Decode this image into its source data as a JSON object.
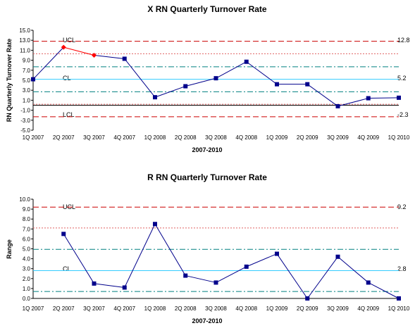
{
  "chart_data": [
    {
      "type": "line",
      "title": "X RN Quarterly Turnover Rate",
      "xlabel": "2007-2010",
      "ylabel": "RN Quarterly Turnover Rate",
      "ylim": [
        -5.0,
        15.0
      ],
      "yticks": [
        "15.0",
        "13.0",
        "11.0",
        "9.0",
        "7.0",
        "5.0",
        "3.0",
        "1.0",
        "-1.0",
        "-3.0",
        "-5.0"
      ],
      "categories": [
        "1Q 2007",
        "2Q 2007",
        "3Q 2007",
        "4Q 2007",
        "1Q 2008",
        "2Q 2008",
        "3Q 2008",
        "4Q 2008",
        "1Q 2009",
        "2Q 2009",
        "3Q 2009",
        "4Q 2009",
        "1Q 2010"
      ],
      "series": [
        {
          "values": [
            5.2,
            11.6,
            10.0,
            9.3,
            1.6,
            3.8,
            5.4,
            8.7,
            4.2,
            4.2,
            -0.2,
            1.4,
            1.5
          ],
          "highlight": [
            false,
            true,
            true,
            false,
            false,
            false,
            false,
            false,
            false,
            false,
            false,
            false,
            false
          ]
        }
      ],
      "reference_lines": {
        "ucl": {
          "label": "UCL",
          "value": 12.8,
          "value_label": "12.8"
        },
        "cl": {
          "label": "CL",
          "value": 5.2,
          "value_label": "5.2"
        },
        "lcl": {
          "label": "LCL",
          "value": -2.3,
          "value_label": "-2.3"
        },
        "upper_2sigma": 10.3,
        "upper_1sigma": 7.7,
        "lower_1sigma": 2.7,
        "lower_2sigma": 0.2
      },
      "grid": false,
      "colors": {
        "line": "#00008B",
        "marker": "#00008B",
        "highlight": "#FF0000",
        "ucl": "#CC0000",
        "cl": "#33CCFF",
        "sigma": "#008080"
      }
    },
    {
      "type": "line",
      "title": "R RN Quarterly Turnover Rate",
      "xlabel": "2007-2010",
      "ylabel": "Range",
      "ylim": [
        0.0,
        10.0
      ],
      "yticks": [
        "10.0",
        "9.0",
        "8.0",
        "7.0",
        "6.0",
        "5.0",
        "4.0",
        "3.0",
        "2.0",
        "1.0",
        "0.0"
      ],
      "categories": [
        "1Q 2007",
        "2Q 2007",
        "3Q 2007",
        "4Q 2007",
        "1Q 2008",
        "2Q 2008",
        "3Q 2008",
        "4Q 2008",
        "1Q 2009",
        "2Q 2009",
        "3Q 2009",
        "4Q 2009",
        "1Q 2010"
      ],
      "series": [
        {
          "values": [
            null,
            6.5,
            1.5,
            1.1,
            7.5,
            2.3,
            1.6,
            3.2,
            4.5,
            0.0,
            4.2,
            1.6,
            0.0
          ]
        }
      ],
      "reference_lines": {
        "ucl": {
          "label": "UCL",
          "value": 9.2,
          "value_label": "9.2"
        },
        "cl": {
          "label": "CL",
          "value": 2.8,
          "value_label": "2.8"
        },
        "upper_2sigma": 7.1,
        "upper_1sigma": 4.95,
        "lower_1sigma": 0.7
      },
      "grid": false,
      "colors": {
        "line": "#00008B",
        "marker": "#00008B",
        "ucl": "#CC0000",
        "cl": "#33CCFF",
        "sigma": "#008080"
      }
    }
  ]
}
